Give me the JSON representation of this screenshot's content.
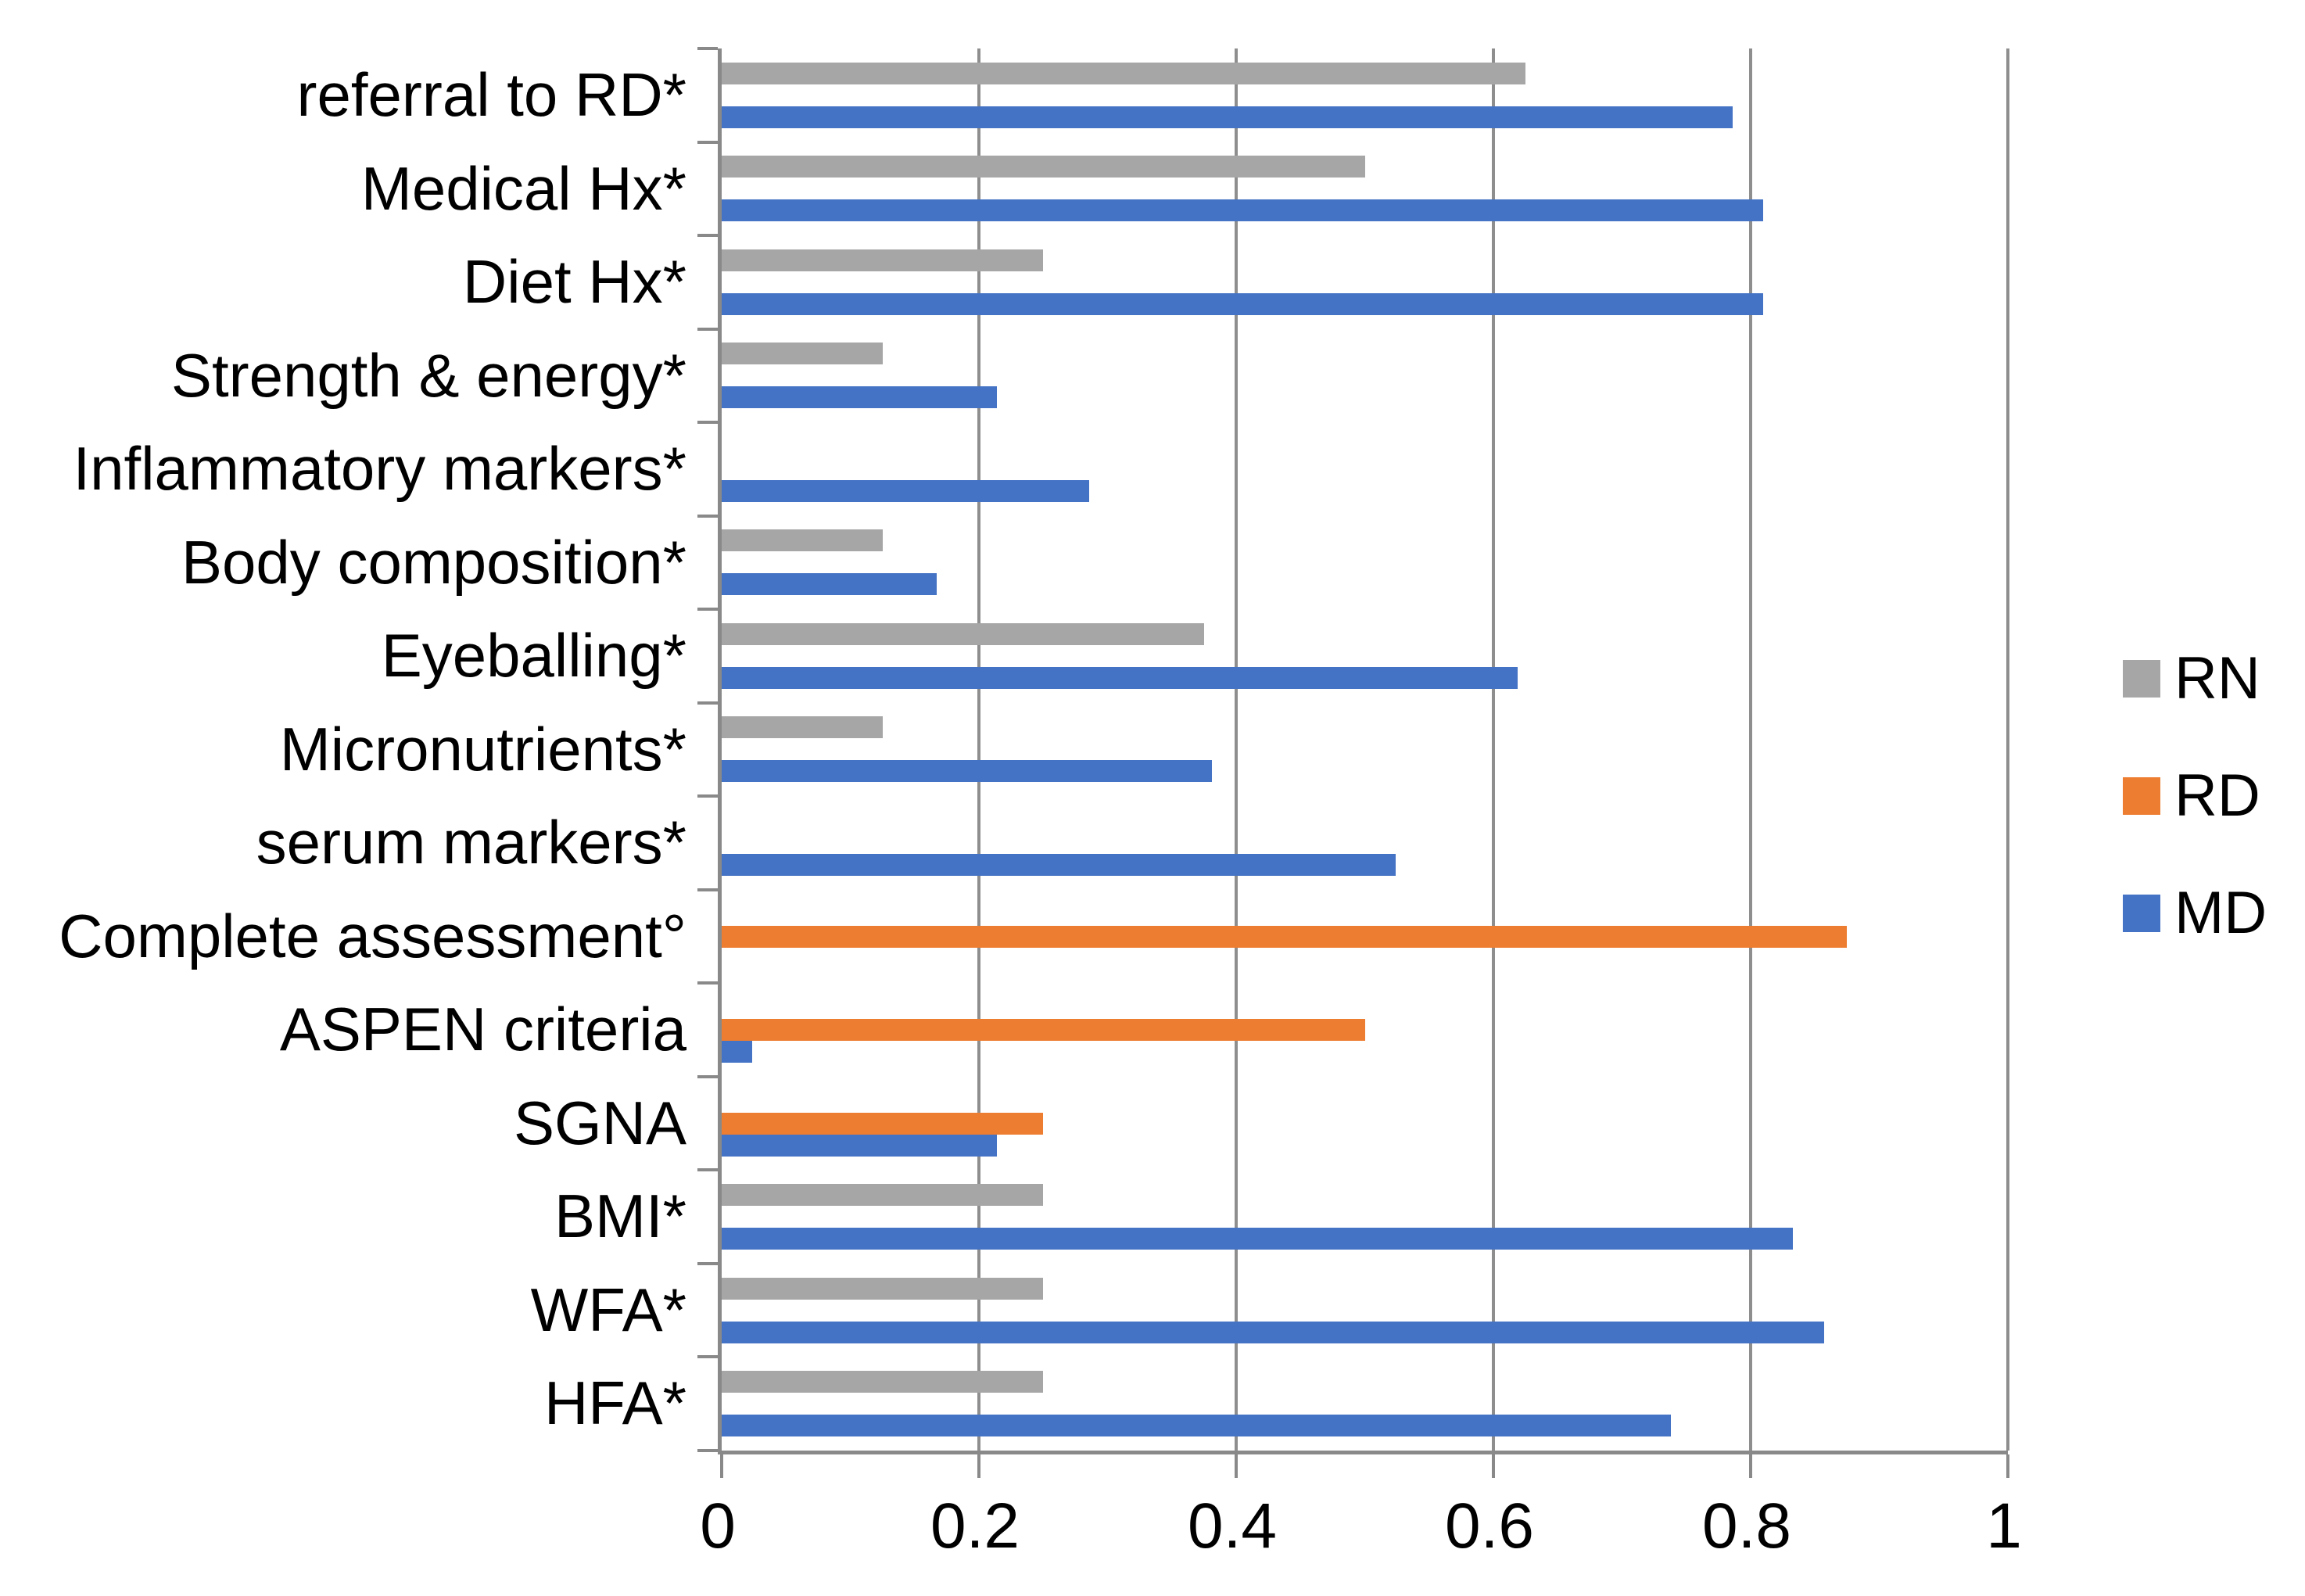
{
  "chart_data": {
    "type": "bar",
    "orientation": "horizontal",
    "title": "",
    "xlabel": "",
    "ylabel": "",
    "grid": true,
    "legend_position": "right",
    "xlim": [
      0,
      1
    ],
    "x_ticks": [
      "0",
      "0.2",
      "0.4",
      "0.6",
      "0.8",
      "1"
    ],
    "x_tick_values": [
      0,
      0.2,
      0.4,
      0.6,
      0.8,
      1
    ],
    "categories": [
      "referral to RD*",
      "Medical Hx*",
      "Diet Hx*",
      "Strength & energy*",
      "Inflammatory markers*",
      "Body composition*",
      "Eyeballing*",
      "Micronutrients*",
      "serum markers*",
      "Complete assessment°",
      "ASPEN criteria",
      "SGNA",
      "BMI*",
      "WFA*",
      "HFA*"
    ],
    "series": [
      {
        "name": "RN",
        "color": "#a6a6a6",
        "values": [
          0.625,
          0.5,
          0.25,
          0.125,
          0,
          0.125,
          0.375,
          0.125,
          0,
          0,
          0,
          0,
          0.25,
          0.25,
          0.25
        ]
      },
      {
        "name": "RD",
        "color": "#ed7d31",
        "values": [
          0,
          0,
          0,
          0,
          0,
          0,
          0,
          0,
          0,
          0.875,
          0.5,
          0.25,
          0,
          0,
          0
        ]
      },
      {
        "name": "MD",
        "color": "#4472c4",
        "values": [
          0.786,
          0.81,
          0.81,
          0.214,
          0.286,
          0.167,
          0.619,
          0.381,
          0.524,
          0,
          0.024,
          0.214,
          0.833,
          0.857,
          0.738
        ]
      }
    ],
    "colors": {
      "axis_line": "#898989",
      "gridline": "#8e8e8e",
      "text": "#000000",
      "background": "#ffffff"
    }
  }
}
